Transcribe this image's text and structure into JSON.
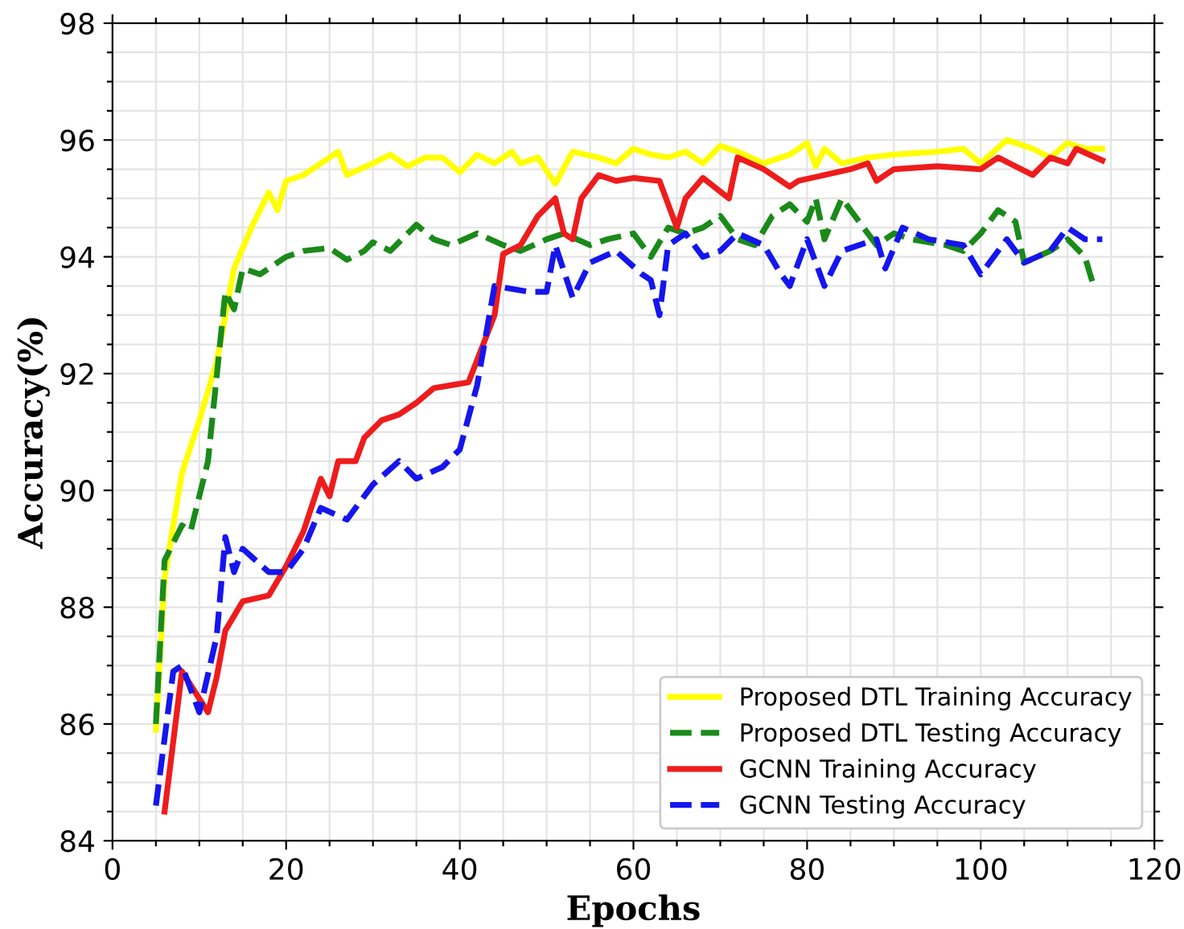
{
  "chart_data": {
    "type": "line",
    "xlabel": "Epochs",
    "ylabel": "Accuracy(%)",
    "xlim": [
      0,
      120
    ],
    "ylim": [
      84,
      98
    ],
    "xticks": [
      0,
      {
        "value": 5,
        "label": null
      },
      {
        "value": 10,
        "label": null
      },
      {
        "value": 15,
        "label": null
      },
      20,
      {
        "value": 25,
        "label": null
      },
      {
        "value": 30,
        "label": null
      },
      {
        "value": 35,
        "label": null
      },
      40,
      {
        "value": 45,
        "label": null
      },
      {
        "value": 50,
        "label": null
      },
      {
        "value": 55,
        "label": null
      },
      60,
      {
        "value": 65,
        "label": null
      },
      {
        "value": 70,
        "label": null
      },
      {
        "value": 75,
        "label": null
      },
      80,
      {
        "value": 85,
        "label": null
      },
      {
        "value": 90,
        "label": null
      },
      {
        "value": 95,
        "label": null
      },
      100,
      {
        "value": 105,
        "label": null
      },
      {
        "value": 110,
        "label": null
      },
      {
        "value": 115,
        "label": null
      },
      120
    ],
    "yticks": [
      84,
      {
        "value": 84.5,
        "label": null
      },
      {
        "value": 85,
        "label": null
      },
      {
        "value": 85.5,
        "label": null
      },
      86,
      {
        "value": 86.5,
        "label": null
      },
      {
        "value": 87,
        "label": null
      },
      {
        "value": 87.5,
        "label": null
      },
      88,
      {
        "value": 88.5,
        "label": null
      },
      {
        "value": 89,
        "label": null
      },
      {
        "value": 89.5,
        "label": null
      },
      90,
      {
        "value": 90.5,
        "label": null
      },
      {
        "value": 91,
        "label": null
      },
      {
        "value": 91.5,
        "label": null
      },
      92,
      {
        "value": 92.5,
        "label": null
      },
      {
        "value": 93,
        "label": null
      },
      {
        "value": 93.5,
        "label": null
      },
      94,
      {
        "value": 94.5,
        "label": null
      },
      {
        "value": 95,
        "label": null
      },
      {
        "value": 95.5,
        "label": null
      },
      96,
      {
        "value": 96.5,
        "label": null
      },
      {
        "value": 97,
        "label": null
      },
      {
        "value": 97.5,
        "label": null
      },
      98
    ],
    "grid": true,
    "legend": "bottom right",
    "marker": "none",
    "series": [
      {
        "name": "Proposed DTL Training Accuracy",
        "color": "#ffff00",
        "line_style": "solid",
        "x": [
          5,
          6,
          8,
          10,
          12,
          14,
          16,
          18,
          19,
          20,
          22,
          24,
          26,
          27,
          30,
          32,
          34,
          36,
          38,
          40,
          42,
          44,
          46,
          47,
          49,
          51,
          53,
          56,
          58,
          60,
          62,
          64,
          66,
          68,
          70,
          72,
          75,
          78,
          80,
          81,
          82,
          84,
          87,
          90,
          95,
          98,
          100,
          103,
          106,
          108,
          110,
          112,
          114
        ],
        "values": [
          85.9,
          88.5,
          90.3,
          91.2,
          92.2,
          93.8,
          94.5,
          95.1,
          94.8,
          95.3,
          95.4,
          95.6,
          95.8,
          95.4,
          95.6,
          95.75,
          95.55,
          95.7,
          95.7,
          95.45,
          95.75,
          95.6,
          95.8,
          95.6,
          95.7,
          95.25,
          95.8,
          95.7,
          95.6,
          95.85,
          95.75,
          95.7,
          95.8,
          95.6,
          95.9,
          95.8,
          95.6,
          95.75,
          95.95,
          95.55,
          95.85,
          95.6,
          95.7,
          95.75,
          95.8,
          95.85,
          95.6,
          96.0,
          95.85,
          95.7,
          95.95,
          95.85,
          95.85
        ]
      },
      {
        "name": "Proposed DTL Testing Accuracy",
        "color": "#1a8a1a",
        "line_style": "dashed",
        "x": [
          5,
          6,
          8,
          9,
          11,
          13,
          14,
          15,
          17,
          20,
          22,
          25,
          27,
          29,
          30,
          32,
          35,
          37,
          39,
          42,
          45,
          47,
          50,
          52,
          55,
          57,
          60,
          62,
          64,
          66,
          68,
          70,
          72,
          74,
          76,
          78,
          80,
          81,
          82,
          84,
          86,
          88,
          90,
          92,
          96,
          98,
          100,
          102,
          104,
          105,
          108,
          110,
          112,
          113
        ],
        "values": [
          86.0,
          88.8,
          89.4,
          89.3,
          90.5,
          93.4,
          93.1,
          93.8,
          93.7,
          94.0,
          94.1,
          94.15,
          93.95,
          94.1,
          94.25,
          94.1,
          94.55,
          94.3,
          94.2,
          94.4,
          94.2,
          94.1,
          94.3,
          94.4,
          94.2,
          94.3,
          94.4,
          94.0,
          94.5,
          94.4,
          94.5,
          94.7,
          94.3,
          94.2,
          94.7,
          94.9,
          94.6,
          95.0,
          94.3,
          95.0,
          94.6,
          94.2,
          94.4,
          94.3,
          94.2,
          94.1,
          94.4,
          94.8,
          94.6,
          93.9,
          94.1,
          94.3,
          94.0,
          93.5
        ]
      },
      {
        "name": "GCNN Training Accuracy",
        "color": "#ee1c1c",
        "line_style": "solid",
        "x": [
          6,
          8,
          11,
          12,
          13,
          15,
          18,
          20,
          22,
          24,
          25,
          26,
          28,
          29,
          31,
          33,
          35,
          37,
          39,
          41,
          44,
          45,
          47,
          49,
          51,
          52,
          53,
          54,
          56,
          58,
          60,
          63,
          65,
          66,
          68,
          71,
          72,
          75,
          78,
          79,
          82,
          85,
          87,
          88,
          90,
          95,
          100,
          102,
          106,
          108,
          110,
          111,
          114
        ],
        "values": [
          84.5,
          86.9,
          86.2,
          86.8,
          87.6,
          88.1,
          88.2,
          88.7,
          89.3,
          90.2,
          89.9,
          90.5,
          90.5,
          90.9,
          91.2,
          91.3,
          91.5,
          91.75,
          91.8,
          91.85,
          93.0,
          94.05,
          94.2,
          94.7,
          95.0,
          94.4,
          94.3,
          95.0,
          95.4,
          95.3,
          95.35,
          95.3,
          94.5,
          95.0,
          95.35,
          95.0,
          95.7,
          95.5,
          95.2,
          95.3,
          95.4,
          95.5,
          95.6,
          95.3,
          95.5,
          95.55,
          95.5,
          95.7,
          95.4,
          95.7,
          95.6,
          95.85,
          95.65
        ]
      },
      {
        "name": "GCNN Testing Accuracy",
        "color": "#1515ee",
        "line_style": "dashed",
        "x": [
          5,
          7,
          8,
          10,
          12,
          13,
          14,
          15,
          18,
          20,
          22,
          24,
          27,
          30,
          33,
          35,
          38,
          40,
          42,
          44,
          48,
          50,
          51,
          53,
          55,
          58,
          61,
          62,
          63,
          64,
          66,
          68,
          70,
          72,
          75,
          77,
          78,
          80,
          82,
          84,
          88,
          89,
          91,
          94,
          98,
          100,
          103,
          105,
          108,
          110,
          112,
          114
        ],
        "values": [
          84.6,
          86.9,
          87.0,
          86.2,
          87.5,
          89.2,
          88.6,
          89.0,
          88.6,
          88.6,
          89.0,
          89.7,
          89.5,
          90.1,
          90.5,
          90.2,
          90.4,
          90.7,
          91.8,
          93.5,
          93.4,
          93.4,
          94.2,
          93.3,
          93.9,
          94.1,
          93.7,
          93.6,
          93.0,
          94.2,
          94.4,
          94.0,
          94.1,
          94.4,
          94.2,
          93.7,
          93.5,
          94.3,
          93.5,
          94.1,
          94.3,
          93.8,
          94.5,
          94.3,
          94.2,
          93.7,
          94.3,
          93.9,
          94.1,
          94.5,
          94.3,
          94.3
        ]
      }
    ]
  }
}
